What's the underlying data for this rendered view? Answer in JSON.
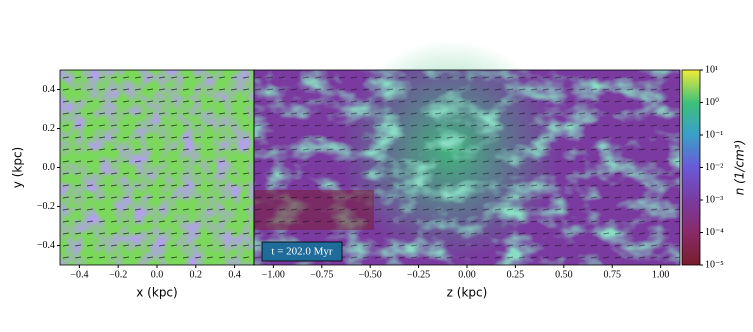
{
  "chart_data": [
    {
      "type": "heatmap",
      "xlabel": "x  (kpc)",
      "ylabel": "y  (kpc)",
      "xlim": [
        -0.5,
        0.5
      ],
      "ylim": [
        -0.5,
        0.5
      ],
      "xticks": [
        {
          "value": -0.4,
          "label": "−0.4"
        },
        {
          "value": -0.2,
          "label": "−0.2"
        },
        {
          "value": 0,
          "label": "0.0"
        },
        {
          "value": 0.2,
          "label": "0.2"
        },
        {
          "value": 0.4,
          "label": "0.4"
        }
      ],
      "yticks": [
        {
          "value": -0.4,
          "label": "−0.4"
        },
        {
          "value": -0.2,
          "label": "−0.2"
        },
        {
          "value": 0,
          "label": "0.0"
        },
        {
          "value": 0.2,
          "label": "0.2"
        },
        {
          "value": 0.4,
          "label": "0.4"
        }
      ]
    },
    {
      "type": "heatmap",
      "xlabel": "z  (kpc)",
      "annotation": "t = 202.0 Myr",
      "xlim": [
        -1.1,
        1.1
      ],
      "ylim": [
        -0.5,
        0.5
      ],
      "xticks": [
        {
          "value": -1,
          "label": "−1.00"
        },
        {
          "value": -0.75,
          "label": "−0.75"
        },
        {
          "value": -0.5,
          "label": "−0.50"
        },
        {
          "value": -0.25,
          "label": "−0.25"
        },
        {
          "value": 0,
          "label": "0.00"
        },
        {
          "value": 0.25,
          "label": "0.25"
        },
        {
          "value": 0.5,
          "label": "0.50"
        },
        {
          "value": 0.75,
          "label": "0.75"
        },
        {
          "value": 1,
          "label": "1.00"
        }
      ],
      "colorbar": {
        "label": "n  (1/cm³)",
        "log": true,
        "lim": [
          1e-05,
          10
        ],
        "ticks": [
          {
            "value": 1e-05,
            "label": "10⁻⁵"
          },
          {
            "value": 0.0001,
            "label": "10⁻⁴"
          },
          {
            "value": 0.001,
            "label": "10⁻³"
          },
          {
            "value": 0.01,
            "label": "10⁻²"
          },
          {
            "value": 0.1,
            "label": "10⁻¹"
          },
          {
            "value": 1,
            "label": "10⁰"
          },
          {
            "value": 10,
            "label": "10¹"
          }
        ]
      }
    }
  ]
}
